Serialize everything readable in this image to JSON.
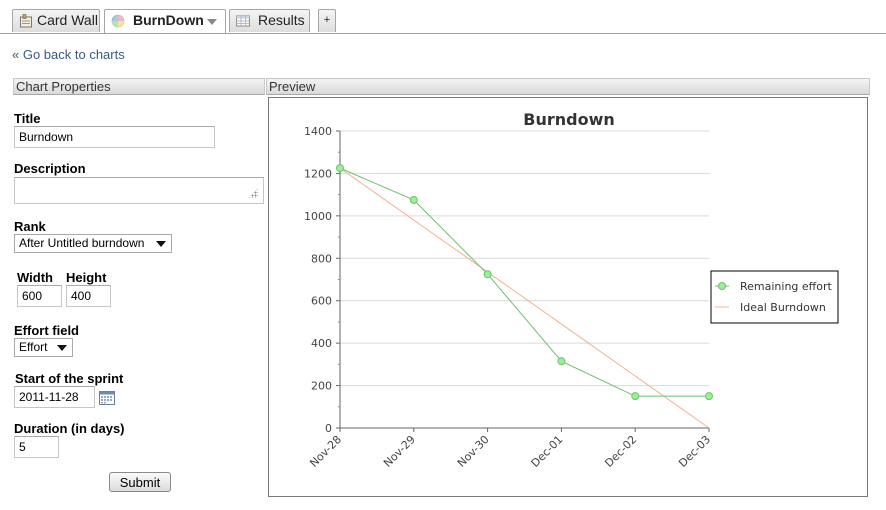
{
  "tabs": [
    {
      "label": "Card Wall",
      "icon": "card-wall-icon"
    },
    {
      "label": "BurnDown",
      "icon": "pie-chart-icon",
      "active": true
    },
    {
      "label": "Results",
      "icon": "table-icon"
    }
  ],
  "tab_add_label": "+",
  "back_link": "« Go back to charts",
  "panels": {
    "properties": "Chart Properties",
    "preview": "Preview"
  },
  "form": {
    "title_label": "Title",
    "title_value": "Burndown",
    "description_label": "Description",
    "description_value": "",
    "rank_label": "Rank",
    "rank_value": "After Untitled burndown",
    "width_label": "Width",
    "width_value": "600",
    "height_label": "Height",
    "height_value": "400",
    "effort_label": "Effort field",
    "effort_value": "Effort",
    "start_label": "Start of the sprint",
    "start_value": "2011-11-28",
    "duration_label": "Duration (in days)",
    "duration_value": "5",
    "submit_label": "Submit"
  },
  "colors": {
    "remaining": "#6fbf6f",
    "remaining_marker": "#98f098",
    "ideal": "#f4b18a",
    "grid": "#d9d9d9"
  },
  "chart_data": {
    "type": "line",
    "title": "Burndown",
    "categories": [
      "Nov-28",
      "Nov-29",
      "Nov-30",
      "Dec-01",
      "Dec-02",
      "Dec-03"
    ],
    "ylim": [
      0,
      1400
    ],
    "yticks": [
      0,
      200,
      400,
      600,
      800,
      1000,
      1200,
      1400
    ],
    "grid": true,
    "legend_position": "right",
    "series": [
      {
        "name": "Remaining effort",
        "values": [
          1225,
          1075,
          725,
          315,
          150,
          150
        ],
        "markers": true
      },
      {
        "name": "Ideal Burndown",
        "values": [
          1225,
          980,
          735,
          490,
          245,
          0
        ],
        "markers": false
      }
    ]
  }
}
